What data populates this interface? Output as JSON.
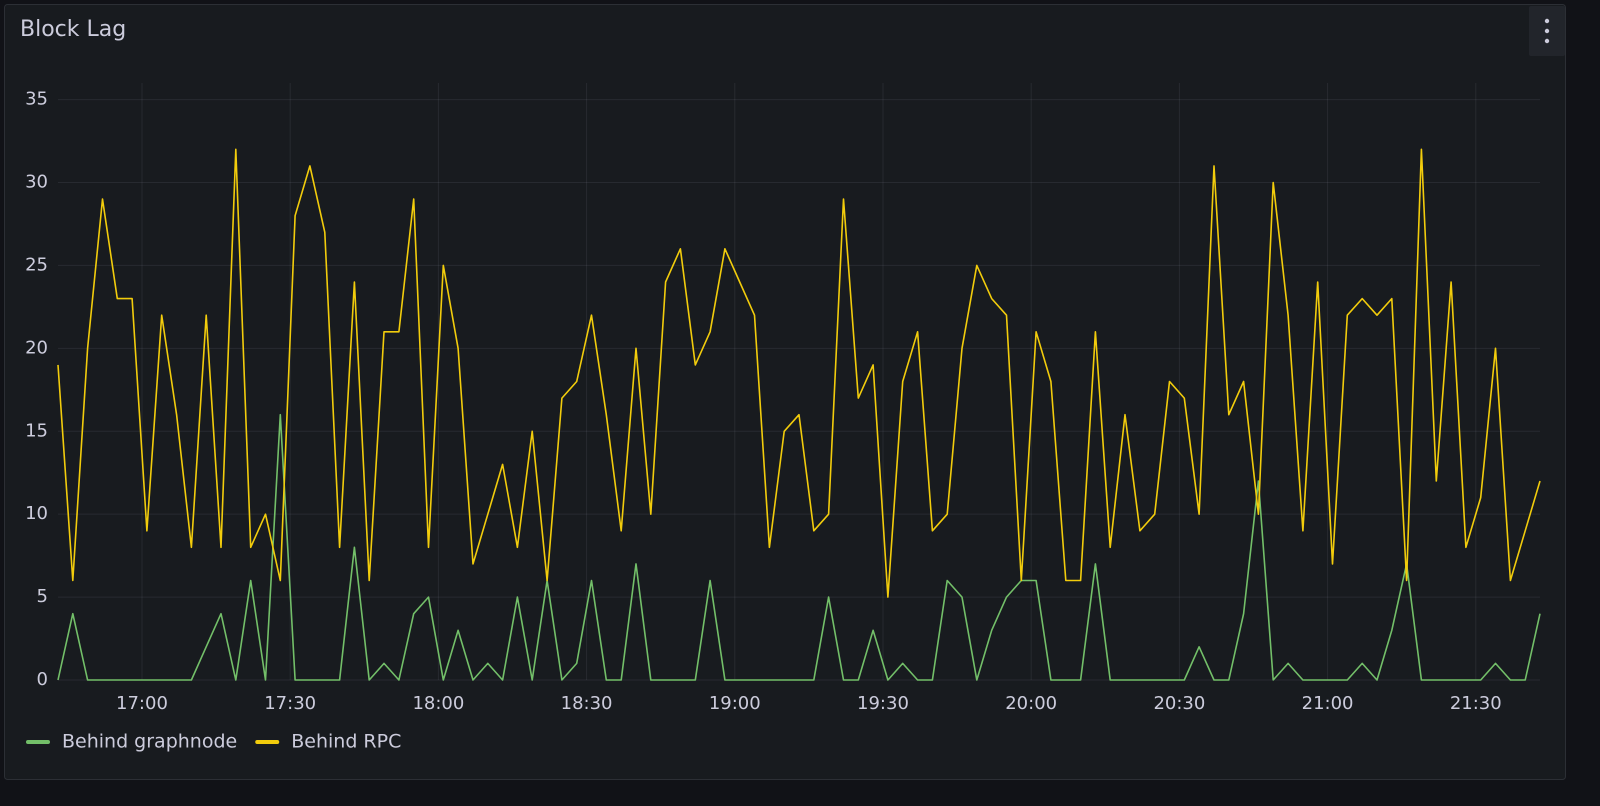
{
  "chart_data": {
    "type": "line",
    "title": "Block Lag",
    "x": [
      "16:43",
      "16:46",
      "16:49",
      "16:52",
      "16:55",
      "16:58",
      "17:01",
      "17:04",
      "17:07",
      "17:10",
      "17:13",
      "17:16",
      "17:19",
      "17:22",
      "17:25",
      "17:28",
      "17:31",
      "17:34",
      "17:37",
      "17:40",
      "17:43",
      "17:46",
      "17:49",
      "17:52",
      "17:55",
      "17:58",
      "18:01",
      "18:04",
      "18:07",
      "18:10",
      "18:13",
      "18:16",
      "18:19",
      "18:22",
      "18:25",
      "18:28",
      "18:31",
      "18:34",
      "18:37",
      "18:40",
      "18:43",
      "18:46",
      "18:49",
      "18:52",
      "18:55",
      "18:58",
      "19:01",
      "19:04",
      "19:07",
      "19:10",
      "19:13",
      "19:16",
      "19:19",
      "19:22",
      "19:25",
      "19:28",
      "19:31",
      "19:34",
      "19:37",
      "19:40",
      "19:43",
      "19:46",
      "19:49",
      "19:52",
      "19:55",
      "19:58",
      "20:01",
      "20:04",
      "20:07",
      "20:10",
      "20:13",
      "20:16",
      "20:19",
      "20:22",
      "20:25",
      "20:28",
      "20:31",
      "20:34",
      "20:37",
      "20:40",
      "20:43",
      "20:46",
      "20:49",
      "20:52",
      "20:55",
      "20:58",
      "21:01",
      "21:04",
      "21:07",
      "21:10",
      "21:13",
      "21:16",
      "21:19",
      "21:22",
      "21:25",
      "21:28",
      "21:31",
      "21:34",
      "21:37",
      "21:40",
      "21:43"
    ],
    "series": [
      {
        "name": "Behind graphnode",
        "color": "#73bf69",
        "values": [
          0,
          4,
          0,
          0,
          0,
          0,
          0,
          0,
          0,
          0,
          2,
          4,
          0,
          6,
          0,
          16,
          0,
          0,
          0,
          0,
          8,
          0,
          1,
          0,
          4,
          5,
          0,
          3,
          0,
          1,
          0,
          5,
          0,
          6,
          0,
          1,
          6,
          0,
          0,
          7,
          0,
          0,
          0,
          0,
          6,
          0,
          0,
          0,
          0,
          0,
          0,
          0,
          5,
          0,
          0,
          3,
          0,
          1,
          0,
          0,
          6,
          5,
          0,
          3,
          5,
          6,
          6,
          0,
          0,
          0,
          7,
          0,
          0,
          0,
          0,
          0,
          0,
          2,
          0,
          0,
          4,
          12,
          0,
          1,
          0,
          0,
          0,
          0,
          1,
          0,
          3,
          7,
          0,
          0,
          0,
          0,
          0,
          1,
          0,
          0,
          4
        ]
      },
      {
        "name": "Behind RPC",
        "color": "#f2cc0c",
        "values": [
          19,
          6,
          20,
          29,
          23,
          23,
          9,
          22,
          16,
          8,
          22,
          8,
          32,
          8,
          10,
          6,
          28,
          31,
          27,
          8,
          24,
          6,
          21,
          21,
          29,
          8,
          25,
          20,
          7,
          10,
          13,
          8,
          15,
          6,
          17,
          18,
          22,
          16,
          9,
          20,
          10,
          24,
          26,
          19,
          21,
          26,
          24,
          22,
          8,
          15,
          16,
          9,
          10,
          29,
          17,
          19,
          5,
          18,
          21,
          9,
          10,
          20,
          25,
          23,
          22,
          6,
          21,
          18,
          6,
          6,
          21,
          8,
          16,
          9,
          10,
          18,
          17,
          10,
          31,
          16,
          18,
          10,
          30,
          22,
          9,
          24,
          7,
          22,
          23,
          22,
          23,
          6,
          32,
          12,
          24,
          8,
          11,
          20,
          6,
          9,
          12
        ]
      }
    ],
    "xlim": [
      "16:43",
      "21:43"
    ],
    "xticks": [
      "17:00",
      "17:30",
      "18:00",
      "18:30",
      "19:00",
      "19:30",
      "20:00",
      "20:30",
      "21:00",
      "21:30"
    ],
    "ylim": [
      0,
      36
    ],
    "yticks": [
      0,
      5,
      10,
      15,
      20,
      25,
      30,
      35
    ],
    "grid": true,
    "legend": "bottom"
  }
}
